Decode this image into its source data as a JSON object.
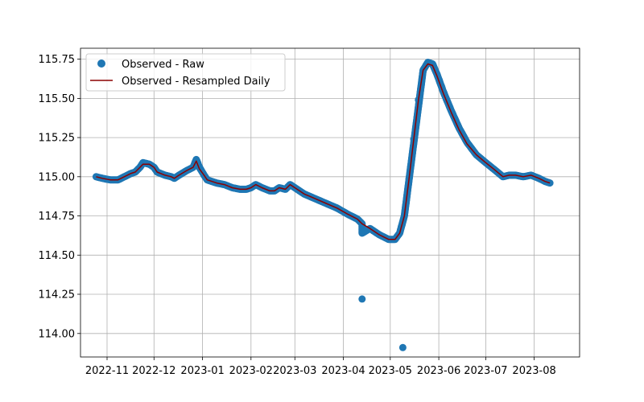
{
  "chart_data": {
    "type": "line",
    "title": "",
    "xlabel": "",
    "ylabel": "",
    "grid": true,
    "legend_position": "top-left",
    "xlim": [
      "2022-10-15",
      "2023-08-30"
    ],
    "ylim": [
      113.85,
      115.82
    ],
    "x_ticks": [
      "2022-11-01",
      "2022-12-01",
      "2023-01-01",
      "2023-02-01",
      "2023-03-01",
      "2023-04-01",
      "2023-05-01",
      "2023-06-01",
      "2023-07-01",
      "2023-08-01"
    ],
    "x_tick_labels": [
      "2022-11",
      "2022-12",
      "2023-01",
      "2023-02",
      "2023-03",
      "2023-04",
      "2023-05",
      "2023-06",
      "2023-07",
      "2023-08"
    ],
    "y_ticks": [
      114.0,
      114.25,
      114.5,
      114.75,
      115.0,
      115.25,
      115.5,
      115.75
    ],
    "y_tick_labels": [
      "114.00",
      "114.25",
      "114.50",
      "114.75",
      "115.00",
      "115.25",
      "115.50",
      "115.75"
    ],
    "series": [
      {
        "name": "Observed - Raw",
        "kind": "scatter",
        "color": "#1f77b4",
        "points": [
          {
            "x": "2022-10-25",
            "y": 115.0
          },
          {
            "x": "2022-10-29",
            "y": 114.99
          },
          {
            "x": "2022-11-03",
            "y": 114.98
          },
          {
            "x": "2022-11-08",
            "y": 114.98
          },
          {
            "x": "2022-11-12",
            "y": 115.0
          },
          {
            "x": "2022-11-16",
            "y": 115.02
          },
          {
            "x": "2022-11-19",
            "y": 115.03
          },
          {
            "x": "2022-11-22",
            "y": 115.06
          },
          {
            "x": "2022-11-24",
            "y": 115.09
          },
          {
            "x": "2022-11-28",
            "y": 115.08
          },
          {
            "x": "2022-12-01",
            "y": 115.06
          },
          {
            "x": "2022-12-03",
            "y": 115.03
          },
          {
            "x": "2022-12-08",
            "y": 115.01
          },
          {
            "x": "2022-12-12",
            "y": 115.0
          },
          {
            "x": "2022-12-14",
            "y": 114.99
          },
          {
            "x": "2022-12-17",
            "y": 115.01
          },
          {
            "x": "2022-12-22",
            "y": 115.04
          },
          {
            "x": "2022-12-26",
            "y": 115.06
          },
          {
            "x": "2022-12-28",
            "y": 115.11
          },
          {
            "x": "2022-12-30",
            "y": 115.06
          },
          {
            "x": "2023-01-02",
            "y": 115.01
          },
          {
            "x": "2023-01-04",
            "y": 114.98
          },
          {
            "x": "2023-01-10",
            "y": 114.96
          },
          {
            "x": "2023-01-15",
            "y": 114.95
          },
          {
            "x": "2023-01-20",
            "y": 114.93
          },
          {
            "x": "2023-01-25",
            "y": 114.92
          },
          {
            "x": "2023-01-29",
            "y": 114.92
          },
          {
            "x": "2023-02-01",
            "y": 114.93
          },
          {
            "x": "2023-02-04",
            "y": 114.95
          },
          {
            "x": "2023-02-08",
            "y": 114.93
          },
          {
            "x": "2023-02-13",
            "y": 114.91
          },
          {
            "x": "2023-02-16",
            "y": 114.91
          },
          {
            "x": "2023-02-19",
            "y": 114.93
          },
          {
            "x": "2023-02-23",
            "y": 114.92
          },
          {
            "x": "2023-02-26",
            "y": 114.95
          },
          {
            "x": "2023-03-01",
            "y": 114.93
          },
          {
            "x": "2023-03-07",
            "y": 114.89
          },
          {
            "x": "2023-03-14",
            "y": 114.86
          },
          {
            "x": "2023-03-21",
            "y": 114.83
          },
          {
            "x": "2023-03-28",
            "y": 114.8
          },
          {
            "x": "2023-04-04",
            "y": 114.76
          },
          {
            "x": "2023-04-10",
            "y": 114.73
          },
          {
            "x": "2023-04-13",
            "y": 114.7
          },
          {
            "x": "2023-04-13",
            "y": 114.64
          },
          {
            "x": "2023-04-13",
            "y": 114.22
          },
          {
            "x": "2023-04-18",
            "y": 114.67
          },
          {
            "x": "2023-04-24",
            "y": 114.63
          },
          {
            "x": "2023-04-30",
            "y": 114.6
          },
          {
            "x": "2023-05-04",
            "y": 114.6
          },
          {
            "x": "2023-05-07",
            "y": 114.64
          },
          {
            "x": "2023-05-10",
            "y": 114.75
          },
          {
            "x": "2023-05-09",
            "y": 113.91
          },
          {
            "x": "2023-05-13",
            "y": 114.99
          },
          {
            "x": "2023-05-16",
            "y": 115.24
          },
          {
            "x": "2023-05-19",
            "y": 115.49
          },
          {
            "x": "2023-05-22",
            "y": 115.68
          },
          {
            "x": "2023-05-25",
            "y": 115.73
          },
          {
            "x": "2023-05-28",
            "y": 115.72
          },
          {
            "x": "2023-05-31",
            "y": 115.65
          },
          {
            "x": "2023-06-04",
            "y": 115.54
          },
          {
            "x": "2023-06-09",
            "y": 115.42
          },
          {
            "x": "2023-06-14",
            "y": 115.31
          },
          {
            "x": "2023-06-19",
            "y": 115.22
          },
          {
            "x": "2023-06-25",
            "y": 115.14
          },
          {
            "x": "2023-07-01",
            "y": 115.09
          },
          {
            "x": "2023-07-06",
            "y": 115.05
          },
          {
            "x": "2023-07-12",
            "y": 115.0
          },
          {
            "x": "2023-07-16",
            "y": 115.01
          },
          {
            "x": "2023-07-20",
            "y": 115.01
          },
          {
            "x": "2023-07-25",
            "y": 115.0
          },
          {
            "x": "2023-07-30",
            "y": 115.01
          },
          {
            "x": "2023-08-04",
            "y": 114.99
          },
          {
            "x": "2023-08-08",
            "y": 114.97
          },
          {
            "x": "2023-08-11",
            "y": 114.96
          }
        ]
      },
      {
        "name": "Observed - Resampled Daily",
        "kind": "line",
        "color": "#8b0000",
        "points": [
          {
            "x": "2022-10-25",
            "y": 115.0
          },
          {
            "x": "2022-10-29",
            "y": 114.99
          },
          {
            "x": "2022-11-03",
            "y": 114.98
          },
          {
            "x": "2022-11-08",
            "y": 114.98
          },
          {
            "x": "2022-11-12",
            "y": 115.0
          },
          {
            "x": "2022-11-16",
            "y": 115.02
          },
          {
            "x": "2022-11-19",
            "y": 115.03
          },
          {
            "x": "2022-11-22",
            "y": 115.06
          },
          {
            "x": "2022-11-24",
            "y": 115.08
          },
          {
            "x": "2022-11-28",
            "y": 115.08
          },
          {
            "x": "2022-12-01",
            "y": 115.06
          },
          {
            "x": "2022-12-03",
            "y": 115.03
          },
          {
            "x": "2022-12-08",
            "y": 115.01
          },
          {
            "x": "2022-12-12",
            "y": 115.0
          },
          {
            "x": "2022-12-14",
            "y": 114.99
          },
          {
            "x": "2022-12-17",
            "y": 115.01
          },
          {
            "x": "2022-12-22",
            "y": 115.04
          },
          {
            "x": "2022-12-26",
            "y": 115.06
          },
          {
            "x": "2022-12-28",
            "y": 115.1
          },
          {
            "x": "2022-12-30",
            "y": 115.05
          },
          {
            "x": "2023-01-02",
            "y": 115.01
          },
          {
            "x": "2023-01-04",
            "y": 114.98
          },
          {
            "x": "2023-01-10",
            "y": 114.96
          },
          {
            "x": "2023-01-15",
            "y": 114.95
          },
          {
            "x": "2023-01-20",
            "y": 114.93
          },
          {
            "x": "2023-01-25",
            "y": 114.92
          },
          {
            "x": "2023-01-29",
            "y": 114.92
          },
          {
            "x": "2023-02-01",
            "y": 114.93
          },
          {
            "x": "2023-02-04",
            "y": 114.95
          },
          {
            "x": "2023-02-08",
            "y": 114.93
          },
          {
            "x": "2023-02-13",
            "y": 114.91
          },
          {
            "x": "2023-02-16",
            "y": 114.91
          },
          {
            "x": "2023-02-19",
            "y": 114.93
          },
          {
            "x": "2023-02-23",
            "y": 114.92
          },
          {
            "x": "2023-02-26",
            "y": 114.95
          },
          {
            "x": "2023-03-01",
            "y": 114.93
          },
          {
            "x": "2023-03-07",
            "y": 114.89
          },
          {
            "x": "2023-03-14",
            "y": 114.86
          },
          {
            "x": "2023-03-21",
            "y": 114.83
          },
          {
            "x": "2023-03-28",
            "y": 114.8
          },
          {
            "x": "2023-04-04",
            "y": 114.76
          },
          {
            "x": "2023-04-10",
            "y": 114.73
          },
          {
            "x": "2023-04-13",
            "y": 114.7
          },
          {
            "x": "2023-04-18",
            "y": 114.67
          },
          {
            "x": "2023-04-24",
            "y": 114.63
          },
          {
            "x": "2023-04-30",
            "y": 114.6
          },
          {
            "x": "2023-05-04",
            "y": 114.6
          },
          {
            "x": "2023-05-07",
            "y": 114.64
          },
          {
            "x": "2023-05-10",
            "y": 114.75
          },
          {
            "x": "2023-05-13",
            "y": 114.99
          },
          {
            "x": "2023-05-16",
            "y": 115.24
          },
          {
            "x": "2023-05-19",
            "y": 115.49
          },
          {
            "x": "2023-05-22",
            "y": 115.68
          },
          {
            "x": "2023-05-25",
            "y": 115.72
          },
          {
            "x": "2023-05-28",
            "y": 115.71
          },
          {
            "x": "2023-05-31",
            "y": 115.64
          },
          {
            "x": "2023-06-04",
            "y": 115.53
          },
          {
            "x": "2023-06-09",
            "y": 115.41
          },
          {
            "x": "2023-06-14",
            "y": 115.3
          },
          {
            "x": "2023-06-19",
            "y": 115.21
          },
          {
            "x": "2023-06-25",
            "y": 115.14
          },
          {
            "x": "2023-07-01",
            "y": 115.09
          },
          {
            "x": "2023-07-06",
            "y": 115.05
          },
          {
            "x": "2023-07-12",
            "y": 115.0
          },
          {
            "x": "2023-07-16",
            "y": 115.01
          },
          {
            "x": "2023-07-20",
            "y": 115.01
          },
          {
            "x": "2023-07-25",
            "y": 115.0
          },
          {
            "x": "2023-07-30",
            "y": 115.01
          },
          {
            "x": "2023-08-04",
            "y": 114.99
          },
          {
            "x": "2023-08-08",
            "y": 114.97
          },
          {
            "x": "2023-08-11",
            "y": 114.96
          }
        ]
      }
    ]
  }
}
